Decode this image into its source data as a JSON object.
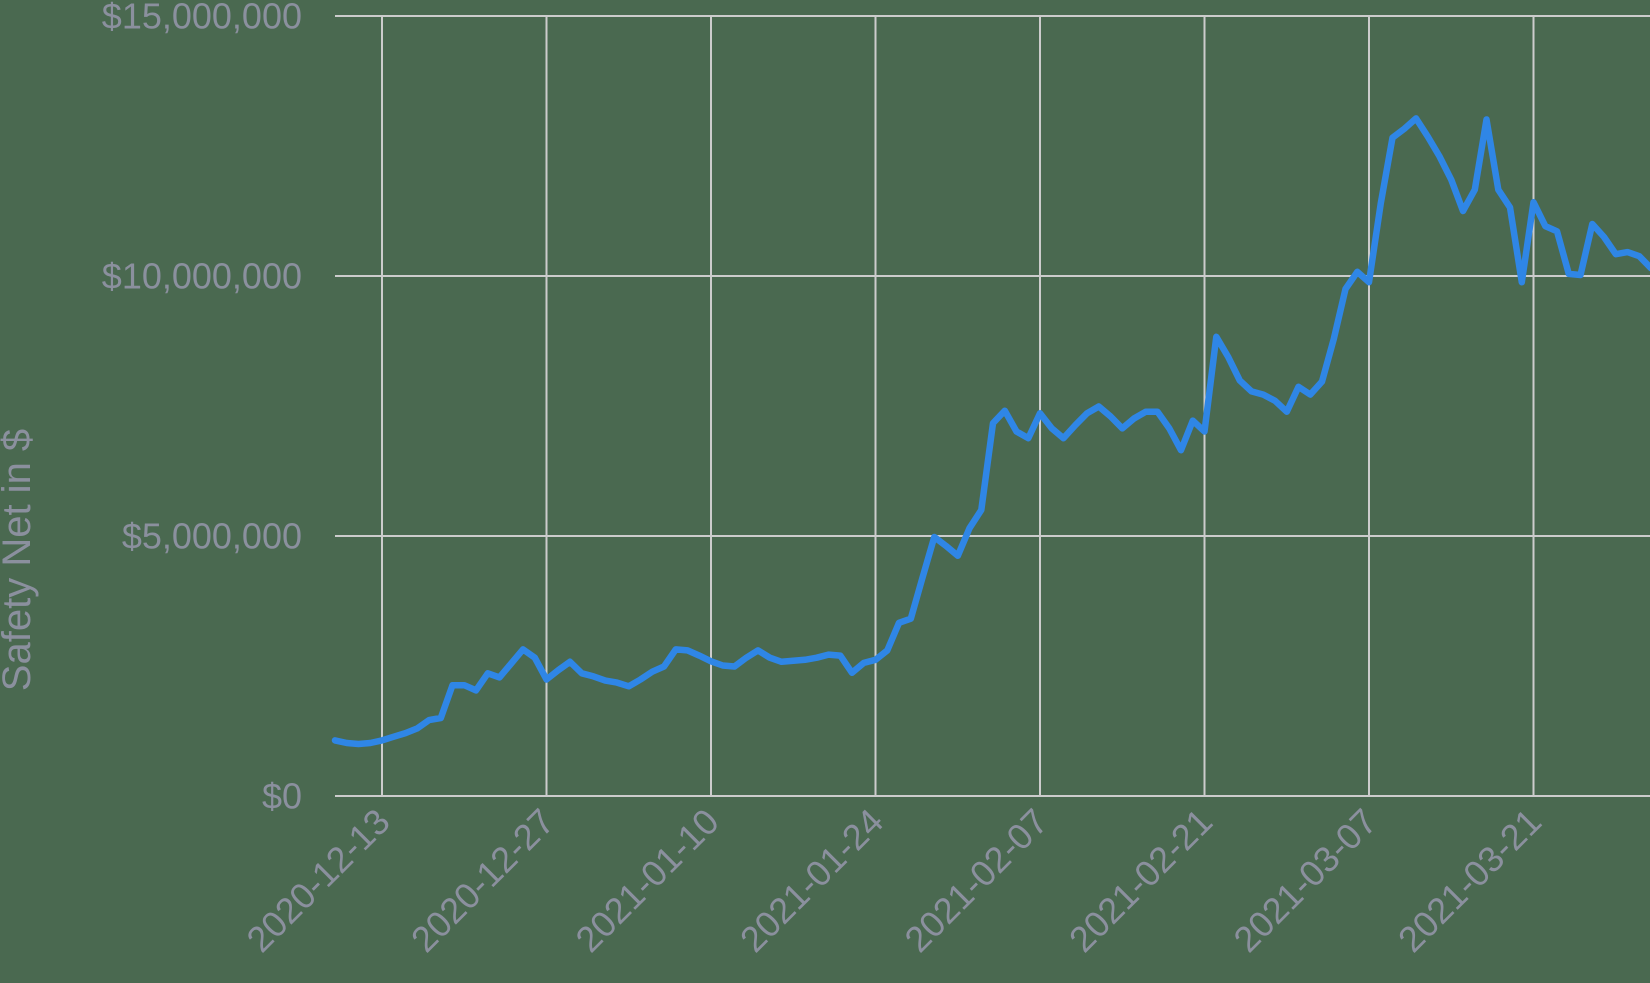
{
  "chart_data": {
    "type": "line",
    "title": "",
    "xlabel": "",
    "ylabel": "Safety Net in $",
    "series_name": "Safety Net",
    "frequency": "daily",
    "start_date": "2020-12-09",
    "end_date": "2021-03-31",
    "ylim": [
      0,
      15000000
    ],
    "grid": true,
    "legend": "none",
    "y_ticks": [
      {
        "value": 0,
        "label": "$0"
      },
      {
        "value": 5000000,
        "label": "$5,000,000"
      },
      {
        "value": 10000000,
        "label": "$10,000,000"
      },
      {
        "value": 15000000,
        "label": "$15,000,000"
      }
    ],
    "x_ticks": [
      {
        "date": "2020-12-13",
        "label": "2020-12-13"
      },
      {
        "date": "2020-12-27",
        "label": "2020-12-27"
      },
      {
        "date": "2021-01-10",
        "label": "2021-01-10"
      },
      {
        "date": "2021-01-24",
        "label": "2021-01-24"
      },
      {
        "date": "2021-02-07",
        "label": "2021-02-07"
      },
      {
        "date": "2021-02-21",
        "label": "2021-02-21"
      },
      {
        "date": "2021-03-07",
        "label": "2021-03-07"
      },
      {
        "date": "2021-03-21",
        "label": "2021-03-21"
      }
    ],
    "values": [
      1070000,
      1020000,
      1000000,
      1020000,
      1070000,
      1140000,
      1210000,
      1300000,
      1460000,
      1500000,
      2130000,
      2130000,
      2030000,
      2360000,
      2280000,
      2550000,
      2820000,
      2660000,
      2240000,
      2420000,
      2580000,
      2360000,
      2300000,
      2220000,
      2180000,
      2110000,
      2240000,
      2390000,
      2490000,
      2820000,
      2800000,
      2700000,
      2590000,
      2510000,
      2490000,
      2660000,
      2800000,
      2660000,
      2580000,
      2600000,
      2620000,
      2660000,
      2720000,
      2700000,
      2370000,
      2560000,
      2620000,
      2800000,
      3330000,
      3410000,
      4200000,
      4980000,
      4810000,
      4620000,
      5150000,
      5500000,
      7170000,
      7410000,
      7010000,
      6880000,
      7360000,
      7070000,
      6880000,
      7130000,
      7360000,
      7490000,
      7300000,
      7070000,
      7260000,
      7390000,
      7390000,
      7070000,
      6650000,
      7220000,
      7010000,
      8830000,
      8450000,
      7990000,
      7780000,
      7720000,
      7600000,
      7390000,
      7870000,
      7720000,
      7970000,
      8790000,
      9750000,
      10080000,
      9880000,
      11400000,
      12660000,
      12830000,
      13030000,
      12680000,
      12300000,
      11850000,
      11250000,
      11660000,
      13010000,
      11660000,
      11320000,
      9880000,
      11420000,
      10960000,
      10860000,
      10040000,
      10020000,
      11000000,
      10750000,
      10420000,
      10460000,
      10380000,
      10150000
    ],
    "colors": {
      "background": "#4a6950",
      "line": "#2f86e6",
      "grid": "#cccccc",
      "text": "#8b909e"
    }
  }
}
